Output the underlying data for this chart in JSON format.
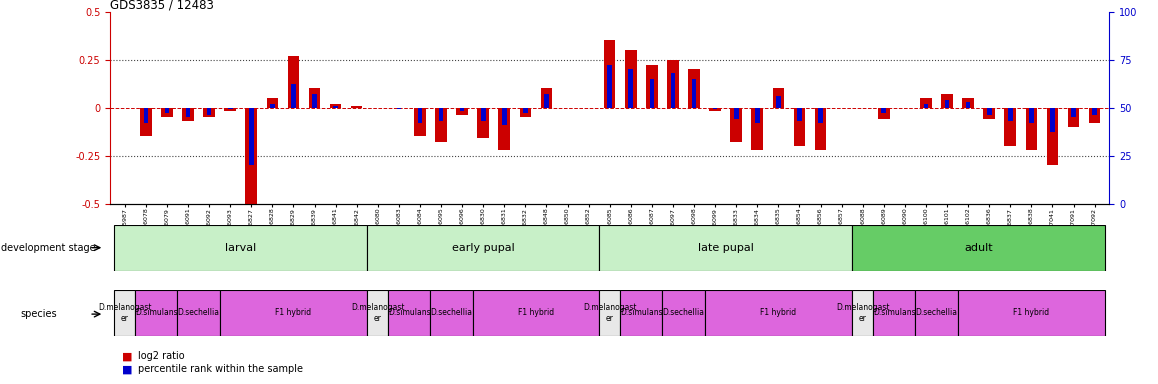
{
  "title": "GDS3835 / 12483",
  "samples": [
    "GSM435987",
    "GSM436078",
    "GSM436079",
    "GSM436091",
    "GSM436092",
    "GSM436093",
    "GSM436827",
    "GSM436828",
    "GSM436829",
    "GSM436839",
    "GSM436841",
    "GSM436842",
    "GSM436080",
    "GSM436083",
    "GSM436084",
    "GSM436095",
    "GSM436096",
    "GSM436830",
    "GSM436831",
    "GSM436832",
    "GSM436848",
    "GSM436850",
    "GSM436852",
    "GSM436085",
    "GSM436086",
    "GSM436087",
    "GSM436097",
    "GSM436098",
    "GSM436099",
    "GSM436833",
    "GSM436834",
    "GSM436835",
    "GSM436854",
    "GSM436856",
    "GSM436857",
    "GSM436088",
    "GSM436089",
    "GSM436090",
    "GSM436100",
    "GSM436101",
    "GSM436102",
    "GSM436836",
    "GSM436837",
    "GSM436838",
    "GSM437041",
    "GSM437091",
    "GSM437092"
  ],
  "log2_ratio": [
    0.0,
    -0.15,
    -0.05,
    -0.07,
    -0.05,
    -0.02,
    -0.52,
    0.05,
    0.27,
    0.1,
    0.02,
    0.01,
    0.0,
    0.0,
    -0.15,
    -0.18,
    -0.04,
    -0.16,
    -0.22,
    -0.05,
    0.1,
    0.0,
    0.0,
    0.35,
    0.3,
    0.22,
    0.25,
    0.2,
    -0.02,
    -0.18,
    -0.22,
    0.1,
    -0.2,
    -0.22,
    0.0,
    0.0,
    -0.06,
    0.0,
    0.05,
    0.07,
    0.05,
    -0.06,
    -0.2,
    -0.22,
    -0.3,
    -0.1,
    -0.08
  ],
  "percentile_rank": [
    50,
    42,
    47,
    45,
    46,
    49,
    20,
    52,
    62,
    57,
    51,
    50,
    50,
    49,
    42,
    43,
    48,
    43,
    41,
    47,
    57,
    50,
    50,
    72,
    70,
    65,
    68,
    65,
    49,
    44,
    42,
    56,
    43,
    42,
    50,
    50,
    47,
    50,
    52,
    54,
    53,
    46,
    43,
    42,
    37,
    45,
    46
  ],
  "dev_stage_groups": [
    {
      "label": "larval",
      "start": 0,
      "end": 11,
      "color": "#c8f0c8"
    },
    {
      "label": "early pupal",
      "start": 12,
      "end": 22,
      "color": "#c8f0c8"
    },
    {
      "label": "late pupal",
      "start": 23,
      "end": 34,
      "color": "#c8f0c8"
    },
    {
      "label": "adult",
      "start": 35,
      "end": 46,
      "color": "#66cc66"
    }
  ],
  "species_groups": [
    {
      "label": "D.melanogast\ner",
      "start": 0,
      "end": 0,
      "color": "#e8e8e8"
    },
    {
      "label": "D.simulans",
      "start": 1,
      "end": 2,
      "color": "#dd66dd"
    },
    {
      "label": "D.sechellia",
      "start": 3,
      "end": 4,
      "color": "#dd66dd"
    },
    {
      "label": "F1 hybrid",
      "start": 5,
      "end": 11,
      "color": "#dd66dd"
    },
    {
      "label": "D.melanogast\ner",
      "start": 12,
      "end": 12,
      "color": "#e8e8e8"
    },
    {
      "label": "D.simulans",
      "start": 13,
      "end": 14,
      "color": "#dd66dd"
    },
    {
      "label": "D.sechellia",
      "start": 15,
      "end": 16,
      "color": "#dd66dd"
    },
    {
      "label": "F1 hybrid",
      "start": 17,
      "end": 22,
      "color": "#dd66dd"
    },
    {
      "label": "D.melanogast\ner",
      "start": 23,
      "end": 23,
      "color": "#e8e8e8"
    },
    {
      "label": "D.simulans",
      "start": 24,
      "end": 25,
      "color": "#dd66dd"
    },
    {
      "label": "D.sechellia",
      "start": 26,
      "end": 27,
      "color": "#dd66dd"
    },
    {
      "label": "F1 hybrid",
      "start": 28,
      "end": 34,
      "color": "#dd66dd"
    },
    {
      "label": "D.melanogast\ner",
      "start": 35,
      "end": 35,
      "color": "#e8e8e8"
    },
    {
      "label": "D.simulans",
      "start": 36,
      "end": 37,
      "color": "#dd66dd"
    },
    {
      "label": "D.sechellia",
      "start": 38,
      "end": 39,
      "color": "#dd66dd"
    },
    {
      "label": "F1 hybrid",
      "start": 40,
      "end": 46,
      "color": "#dd66dd"
    }
  ],
  "ylim_left": [
    -0.5,
    0.5
  ],
  "ylim_right": [
    0,
    100
  ],
  "yticks_left": [
    -0.5,
    -0.25,
    0,
    0.25,
    0.5
  ],
  "yticks_right": [
    0,
    25,
    50,
    75,
    100
  ],
  "log2_color": "#cc0000",
  "pct_color": "#0000cc",
  "ref_line_color": "#cc0000",
  "dotted_line_color": "#444444",
  "background_color": "#ffffff",
  "legend_log2": "log2 ratio",
  "legend_pct": "percentile rank within the sample"
}
